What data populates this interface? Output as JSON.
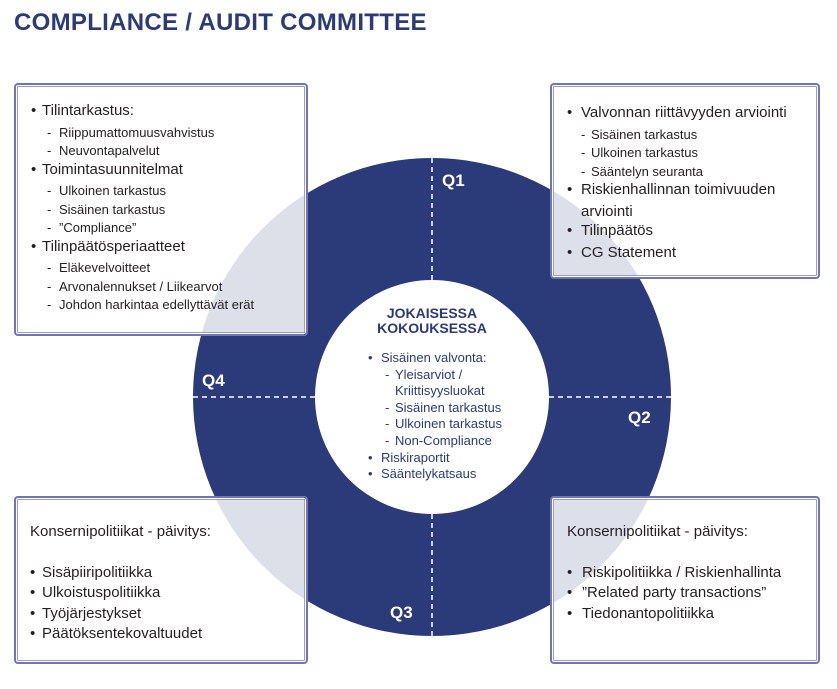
{
  "title": "COMPLIANCE / AUDIT COMMITTEE",
  "colors": {
    "navy": "#2b3a78",
    "box_border": "#7276b0",
    "text": "#231f20"
  },
  "quarters": {
    "q1": "Q1",
    "q2": "Q2",
    "q3": "Q3",
    "q4": "Q4"
  },
  "center": {
    "title_line1": "JOKAISESSA",
    "title_line2": "KOKOUKSESSA",
    "items": [
      {
        "type": "bullet",
        "text": "Sisäinen valvonta:"
      },
      {
        "type": "sub",
        "text": "Yleisarviot /"
      },
      {
        "type": "cont",
        "text": "Kriittisyysluokat"
      },
      {
        "type": "sub",
        "text": "Sisäinen tarkastus"
      },
      {
        "type": "sub",
        "text": "Ulkoinen tarkastus"
      },
      {
        "type": "sub",
        "text": "Non-Compliance"
      },
      {
        "type": "bullet",
        "text": "Riskiraportit"
      },
      {
        "type": "bullet",
        "text": "Sääntelykatsaus"
      }
    ]
  },
  "boxes": {
    "top_left": [
      {
        "type": "bullet",
        "text": "Tilintarkastus:"
      },
      {
        "type": "sub",
        "text": "Riippumattomuusvahvistus"
      },
      {
        "type": "sub",
        "text": "Neuvontapalvelut"
      },
      {
        "type": "bullet",
        "text": "Toimintasuunnitelmat"
      },
      {
        "type": "sub",
        "text": "Ulkoinen tarkastus"
      },
      {
        "type": "sub",
        "text": "Sisäinen tarkastus"
      },
      {
        "type": "sub",
        "text": "”Compliance”"
      },
      {
        "type": "bullet",
        "text": "Tilinpäätösperiaatteet"
      },
      {
        "type": "sub",
        "text": "Eläkevelvoitteet"
      },
      {
        "type": "sub",
        "text": "Arvonalennukset / Liikearvot"
      },
      {
        "type": "sub",
        "text": "Johdon harkintaa edellyttävät erät"
      }
    ],
    "top_right": [
      {
        "type": "bullet",
        "text": "Valvonnan riittävyyden arviointi"
      },
      {
        "type": "sub",
        "text": "Sisäinen tarkastus"
      },
      {
        "type": "sub",
        "text": "Ulkoinen tarkastus"
      },
      {
        "type": "sub",
        "text": "Sääntelyn seuranta"
      },
      {
        "type": "bullet",
        "text": "Riskienhallinnan toimivuuden"
      },
      {
        "type": "cont",
        "text": "arviointi"
      },
      {
        "type": "bullet",
        "text": "Tilinpäätös"
      },
      {
        "type": "bullet",
        "text": "CG Statement"
      }
    ],
    "bottom_left": [
      {
        "type": "heading",
        "text": "Konsernipolitiikat - päivitys:"
      },
      {
        "type": "gap",
        "text": ""
      },
      {
        "type": "bullet",
        "text": "Sisäpiiripolitiikka"
      },
      {
        "type": "bullet",
        "text": "Ulkoistuspolitiikka"
      },
      {
        "type": "bullet",
        "text": "Työjärjestykset"
      },
      {
        "type": "bullet",
        "text": "Päätöksentekovaltuudet"
      }
    ],
    "bottom_right": [
      {
        "type": "heading",
        "text": "Konsernipolitiikat - päivitys:"
      },
      {
        "type": "gap",
        "text": ""
      },
      {
        "type": "bullet",
        "text": "Riskipolitiikka / Riskienhallinta"
      },
      {
        "type": "bullet",
        "text": "”Related party transactions”"
      },
      {
        "type": "bullet",
        "text": "Tiedonantopolitiikka"
      }
    ]
  }
}
